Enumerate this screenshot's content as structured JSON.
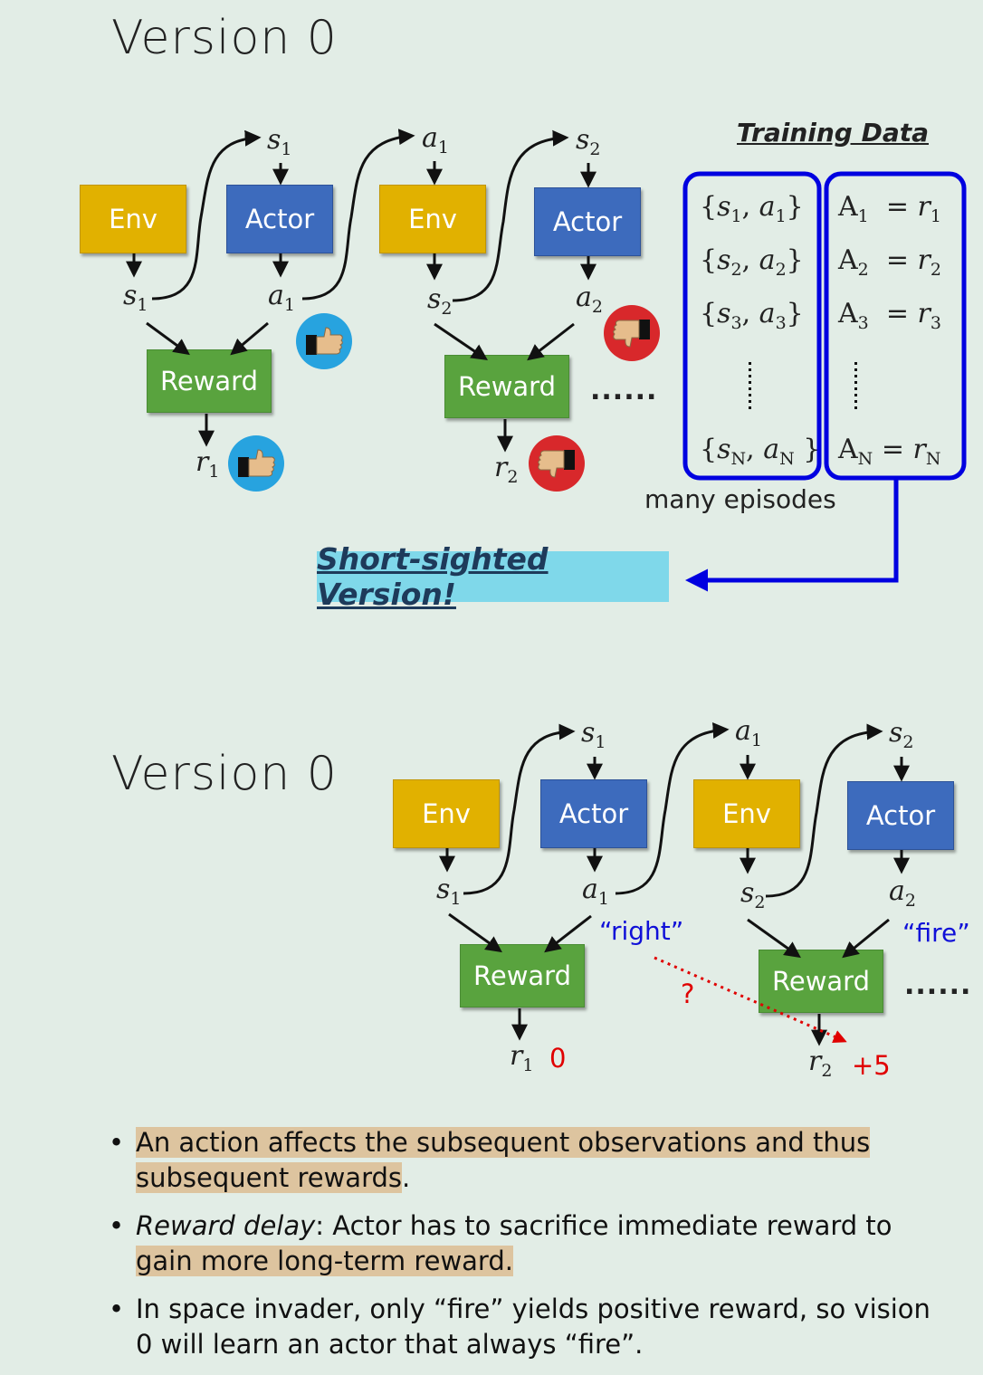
{
  "slide1": {
    "title": "Version 0",
    "env_label": "Env",
    "actor_label": "Actor",
    "reward_label": "Reward",
    "dots": "......",
    "training_title": "Training Data",
    "pairs": [
      "{s1, a1}",
      "{s2, a2}",
      "{s3, a3}",
      "{sN, aN}"
    ],
    "advantages": [
      "A1 = r1",
      "A2 = r2",
      "A3 = r3",
      "AN = rN"
    ],
    "episodes_label": "many episodes",
    "banner": "Short-sighted Version!"
  },
  "slide2": {
    "title": "Version 0",
    "env_label": "Env",
    "actor_label": "Actor",
    "reward_label": "Reward",
    "dots": "......",
    "action1": "“right”",
    "action2": "“fire”",
    "question": "?",
    "r1_value": "0",
    "r2_value": "+5"
  },
  "bullets": [
    {
      "highlight": "An action affects the subsequent observations and thus subsequent rewards",
      "rest": "."
    },
    {
      "italic": "Reward delay",
      "plain": ": Actor has to sacrifice immediate reward to ",
      "highlight": "gain more long-term reward."
    },
    {
      "plain": "In space invader, only “fire” yields positive reward, so vision 0 will learn an actor that always “fire”."
    }
  ],
  "colors": {
    "background": "#e2ede6",
    "env": "#e1b100",
    "actor": "#3d6bbd",
    "reward": "#59a33e",
    "thumb_up": "#27a3df",
    "thumb_down": "#d8282b",
    "banner": "#7fd8ea",
    "frame": "#0000e0",
    "highlight": "#ddc49f"
  },
  "icons": [
    "thumbs-up-icon",
    "thumbs-down-icon",
    "arrow-icon"
  ]
}
